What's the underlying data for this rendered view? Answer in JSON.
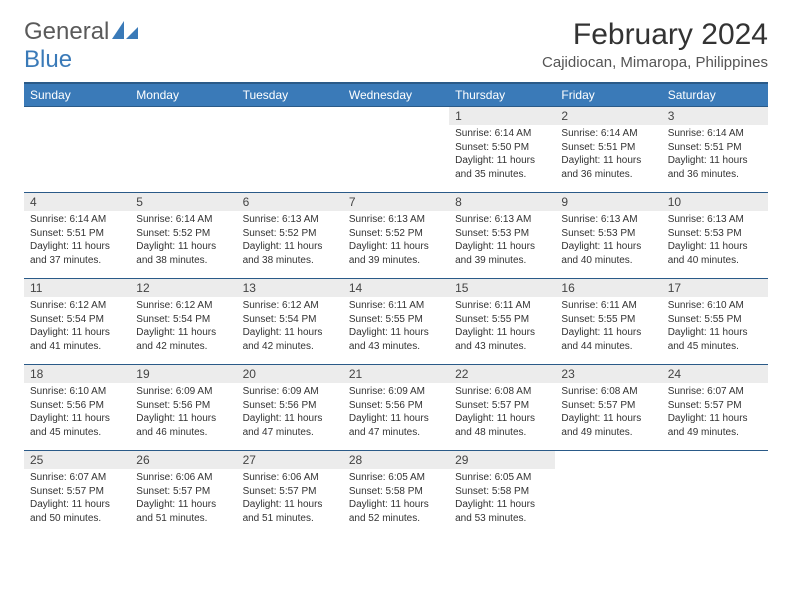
{
  "brand": {
    "text1": "General",
    "text2": "Blue"
  },
  "colors": {
    "header_bg": "#3a7ab8",
    "header_border": "#2a5a88",
    "daynum_bg": "#ececec",
    "page_bg": "#ffffff",
    "text": "#333333",
    "subtext": "#555555",
    "logo_gray": "#5a5a5a",
    "logo_blue": "#3a7ab8"
  },
  "typography": {
    "month_title_size_pt": 22,
    "location_size_pt": 11,
    "header_cell_size_pt": 9,
    "daynum_size_pt": 9,
    "detail_size_pt": 7.5
  },
  "title": "February 2024",
  "location": "Cajidiocan, Mimaropa, Philippines",
  "weekdays": [
    "Sunday",
    "Monday",
    "Tuesday",
    "Wednesday",
    "Thursday",
    "Friday",
    "Saturday"
  ],
  "layout": {
    "rows": 5,
    "cols": 7,
    "first_day_col": 4
  },
  "days": [
    {
      "n": "1",
      "sr": "6:14 AM",
      "ss": "5:50 PM",
      "dl": "11 hours and 35 minutes."
    },
    {
      "n": "2",
      "sr": "6:14 AM",
      "ss": "5:51 PM",
      "dl": "11 hours and 36 minutes."
    },
    {
      "n": "3",
      "sr": "6:14 AM",
      "ss": "5:51 PM",
      "dl": "11 hours and 36 minutes."
    },
    {
      "n": "4",
      "sr": "6:14 AM",
      "ss": "5:51 PM",
      "dl": "11 hours and 37 minutes."
    },
    {
      "n": "5",
      "sr": "6:14 AM",
      "ss": "5:52 PM",
      "dl": "11 hours and 38 minutes."
    },
    {
      "n": "6",
      "sr": "6:13 AM",
      "ss": "5:52 PM",
      "dl": "11 hours and 38 minutes."
    },
    {
      "n": "7",
      "sr": "6:13 AM",
      "ss": "5:52 PM",
      "dl": "11 hours and 39 minutes."
    },
    {
      "n": "8",
      "sr": "6:13 AM",
      "ss": "5:53 PM",
      "dl": "11 hours and 39 minutes."
    },
    {
      "n": "9",
      "sr": "6:13 AM",
      "ss": "5:53 PM",
      "dl": "11 hours and 40 minutes."
    },
    {
      "n": "10",
      "sr": "6:13 AM",
      "ss": "5:53 PM",
      "dl": "11 hours and 40 minutes."
    },
    {
      "n": "11",
      "sr": "6:12 AM",
      "ss": "5:54 PM",
      "dl": "11 hours and 41 minutes."
    },
    {
      "n": "12",
      "sr": "6:12 AM",
      "ss": "5:54 PM",
      "dl": "11 hours and 42 minutes."
    },
    {
      "n": "13",
      "sr": "6:12 AM",
      "ss": "5:54 PM",
      "dl": "11 hours and 42 minutes."
    },
    {
      "n": "14",
      "sr": "6:11 AM",
      "ss": "5:55 PM",
      "dl": "11 hours and 43 minutes."
    },
    {
      "n": "15",
      "sr": "6:11 AM",
      "ss": "5:55 PM",
      "dl": "11 hours and 43 minutes."
    },
    {
      "n": "16",
      "sr": "6:11 AM",
      "ss": "5:55 PM",
      "dl": "11 hours and 44 minutes."
    },
    {
      "n": "17",
      "sr": "6:10 AM",
      "ss": "5:55 PM",
      "dl": "11 hours and 45 minutes."
    },
    {
      "n": "18",
      "sr": "6:10 AM",
      "ss": "5:56 PM",
      "dl": "11 hours and 45 minutes."
    },
    {
      "n": "19",
      "sr": "6:09 AM",
      "ss": "5:56 PM",
      "dl": "11 hours and 46 minutes."
    },
    {
      "n": "20",
      "sr": "6:09 AM",
      "ss": "5:56 PM",
      "dl": "11 hours and 47 minutes."
    },
    {
      "n": "21",
      "sr": "6:09 AM",
      "ss": "5:56 PM",
      "dl": "11 hours and 47 minutes."
    },
    {
      "n": "22",
      "sr": "6:08 AM",
      "ss": "5:57 PM",
      "dl": "11 hours and 48 minutes."
    },
    {
      "n": "23",
      "sr": "6:08 AM",
      "ss": "5:57 PM",
      "dl": "11 hours and 49 minutes."
    },
    {
      "n": "24",
      "sr": "6:07 AM",
      "ss": "5:57 PM",
      "dl": "11 hours and 49 minutes."
    },
    {
      "n": "25",
      "sr": "6:07 AM",
      "ss": "5:57 PM",
      "dl": "11 hours and 50 minutes."
    },
    {
      "n": "26",
      "sr": "6:06 AM",
      "ss": "5:57 PM",
      "dl": "11 hours and 51 minutes."
    },
    {
      "n": "27",
      "sr": "6:06 AM",
      "ss": "5:57 PM",
      "dl": "11 hours and 51 minutes."
    },
    {
      "n": "28",
      "sr": "6:05 AM",
      "ss": "5:58 PM",
      "dl": "11 hours and 52 minutes."
    },
    {
      "n": "29",
      "sr": "6:05 AM",
      "ss": "5:58 PM",
      "dl": "11 hours and 53 minutes."
    }
  ],
  "labels": {
    "sunrise": "Sunrise:",
    "sunset": "Sunset:",
    "daylight": "Daylight:"
  }
}
